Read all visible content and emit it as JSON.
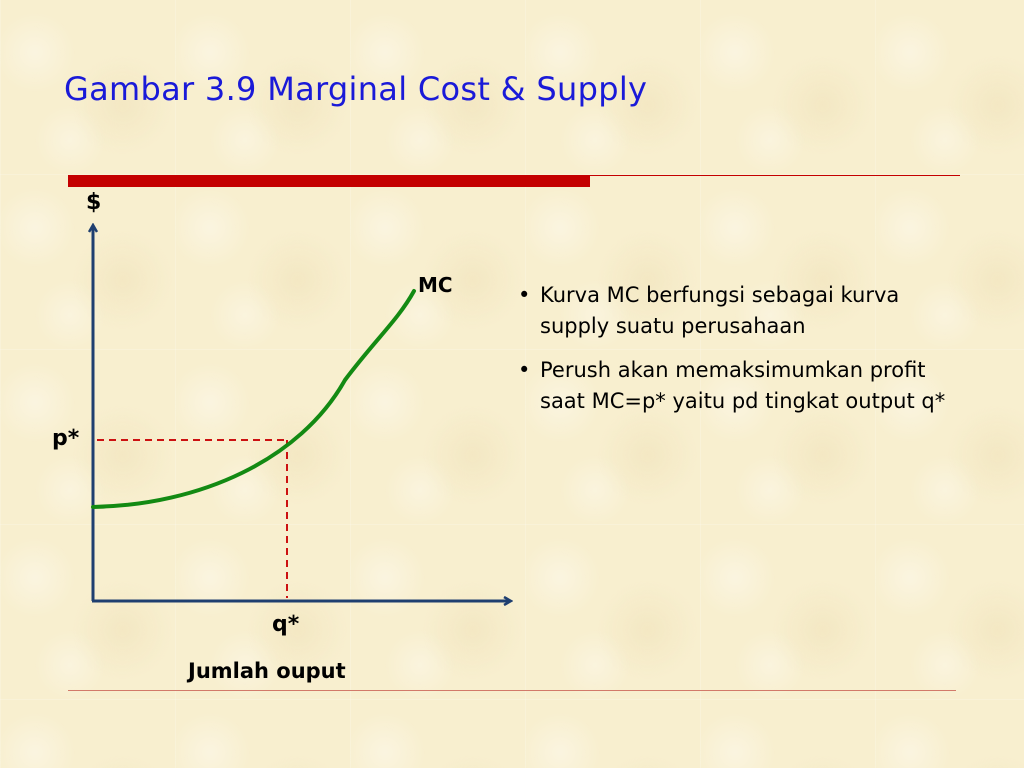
{
  "slide": {
    "title": "Gambar 3.9 Marginal Cost & Supply"
  },
  "diagram": {
    "y_axis_label": "$",
    "x_axis_label": "Jumlah ouput",
    "curve_label": "MC",
    "price_label": "p*",
    "quantity_label": "q*",
    "colors": {
      "axes": "#1f3f70",
      "curve": "#138a13",
      "guides": "#cc1111"
    }
  },
  "bullets": [
    {
      "marker": "•",
      "text": "Kurva MC berfungsi sebagai kurva supply suatu perusahaan"
    },
    {
      "marker": "•",
      "text": "Perush akan memaksimumkan profit saat MC=p* yaitu pd tingkat output q*"
    }
  ],
  "colors": {
    "title": "#1a1ad8",
    "rule": "#c40000",
    "background": "#f8efcf"
  }
}
